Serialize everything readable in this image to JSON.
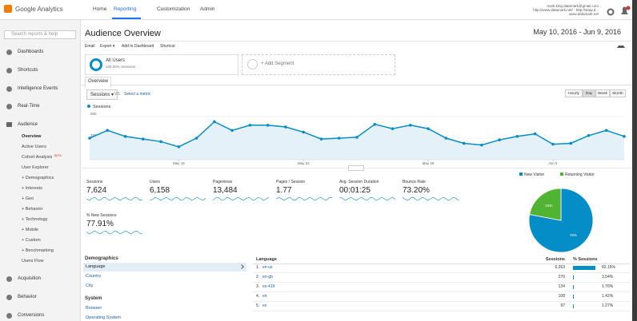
{
  "header": {
    "product": "Google Analytics",
    "nav": [
      "Home",
      "Reporting",
      "Customization",
      "Admin"
    ],
    "account": [
      "mark.king.datamark@gmail.com",
      "http://www.datamark.net/ - http://www.d...",
      "www.datamark.net"
    ]
  },
  "sidebar": {
    "search": "Search reports & help",
    "top": [
      "Dashboards",
      "Shortcuts",
      "Intelligence Events",
      "Real-Time"
    ],
    "section": "Audience",
    "subitems": [
      "Overview",
      "Active Users",
      "Cohort Analysis",
      "User Explorer",
      "+ Demographics",
      "+ Interests",
      "+ Geo",
      "+ Behavior",
      "+ Technology",
      "+ Mobile",
      "+ Custom",
      "+ Benchmarking",
      "Users Flow"
    ],
    "badge": "BETA",
    "bottom": [
      "Acquisition",
      "Behavior",
      "Conversions"
    ]
  },
  "page": {
    "title": "Audience Overview",
    "date_range": "May 10, 2016 - Jun 9, 2016",
    "toolbar": [
      "Email",
      "Export ▾",
      "Add to Dashboard",
      "Shortcut"
    ],
    "segment_name": "All Users",
    "segment_detail": "100.00% Sessions",
    "add_segment": "+ Add Segment",
    "tab": "Overview",
    "metric": "Sessions ▾",
    "vs": "VS.",
    "select_metric": "Select a metric",
    "granularity": [
      "Hourly",
      "Day",
      "Week",
      "Month"
    ]
  },
  "chart_data": [
    {
      "type": "line",
      "categories": [
        null,
        null,
        null,
        null,
        null,
        "May 15",
        null,
        null,
        null,
        null,
        null,
        null,
        "May 22",
        null,
        null,
        null,
        null,
        null,
        null,
        "May 29",
        null,
        null,
        null,
        null,
        null,
        null,
        "Jun 5",
        null,
        null,
        null,
        null
      ],
      "series": [
        {
          "name": "Sessions",
          "color": "#058dc7",
          "values": [
            250,
            340,
            270,
            240,
            210,
            150,
            250,
            440,
            340,
            400,
            400,
            380,
            320,
            240,
            250,
            260,
            410,
            360,
            400,
            360,
            250,
            190,
            170,
            230,
            270,
            300,
            180,
            190,
            280,
            340,
            270
          ]
        }
      ],
      "ylim": [
        0,
        500
      ],
      "yticks": [
        250,
        500
      ],
      "grid": true
    },
    {
      "type": "pie",
      "categories": [
        "New Visitor",
        "Returning Visitor"
      ],
      "values": [
        78,
        22
      ],
      "value_labels": [
        "78%",
        "22%"
      ],
      "colors": [
        "#058dc7",
        "#50b432"
      ]
    }
  ],
  "metrics": [
    {
      "label": "Sessions",
      "value": "7,624"
    },
    {
      "label": "Users",
      "value": "6,158"
    },
    {
      "label": "Pageviews",
      "value": "13,484"
    },
    {
      "label": "Pages / Session",
      "value": "1.77"
    },
    {
      "label": "Avg. Session Duration",
      "value": "00:01:25"
    },
    {
      "label": "Bounce Rate",
      "value": "73.20%"
    },
    {
      "label": "% New Sessions",
      "value": "77.91%"
    }
  ],
  "demographics": {
    "title": "Demographics",
    "items": [
      "Language",
      "Country",
      "City"
    ],
    "system_title": "System",
    "system_items": [
      "Browser",
      "Operating System"
    ]
  },
  "table": {
    "columns": [
      "Language",
      "Sessions",
      "% Sessions"
    ],
    "rows": [
      [
        "1.",
        "en-us",
        "6,263",
        "82.15%"
      ],
      [
        "2.",
        "en-gb",
        "270",
        "3.54%"
      ],
      [
        "3.",
        "es-419",
        "134",
        "1.76%"
      ],
      [
        "4.",
        "en",
        "108",
        "1.42%"
      ],
      [
        "5.",
        "es",
        "97",
        "1.27%"
      ]
    ]
  }
}
